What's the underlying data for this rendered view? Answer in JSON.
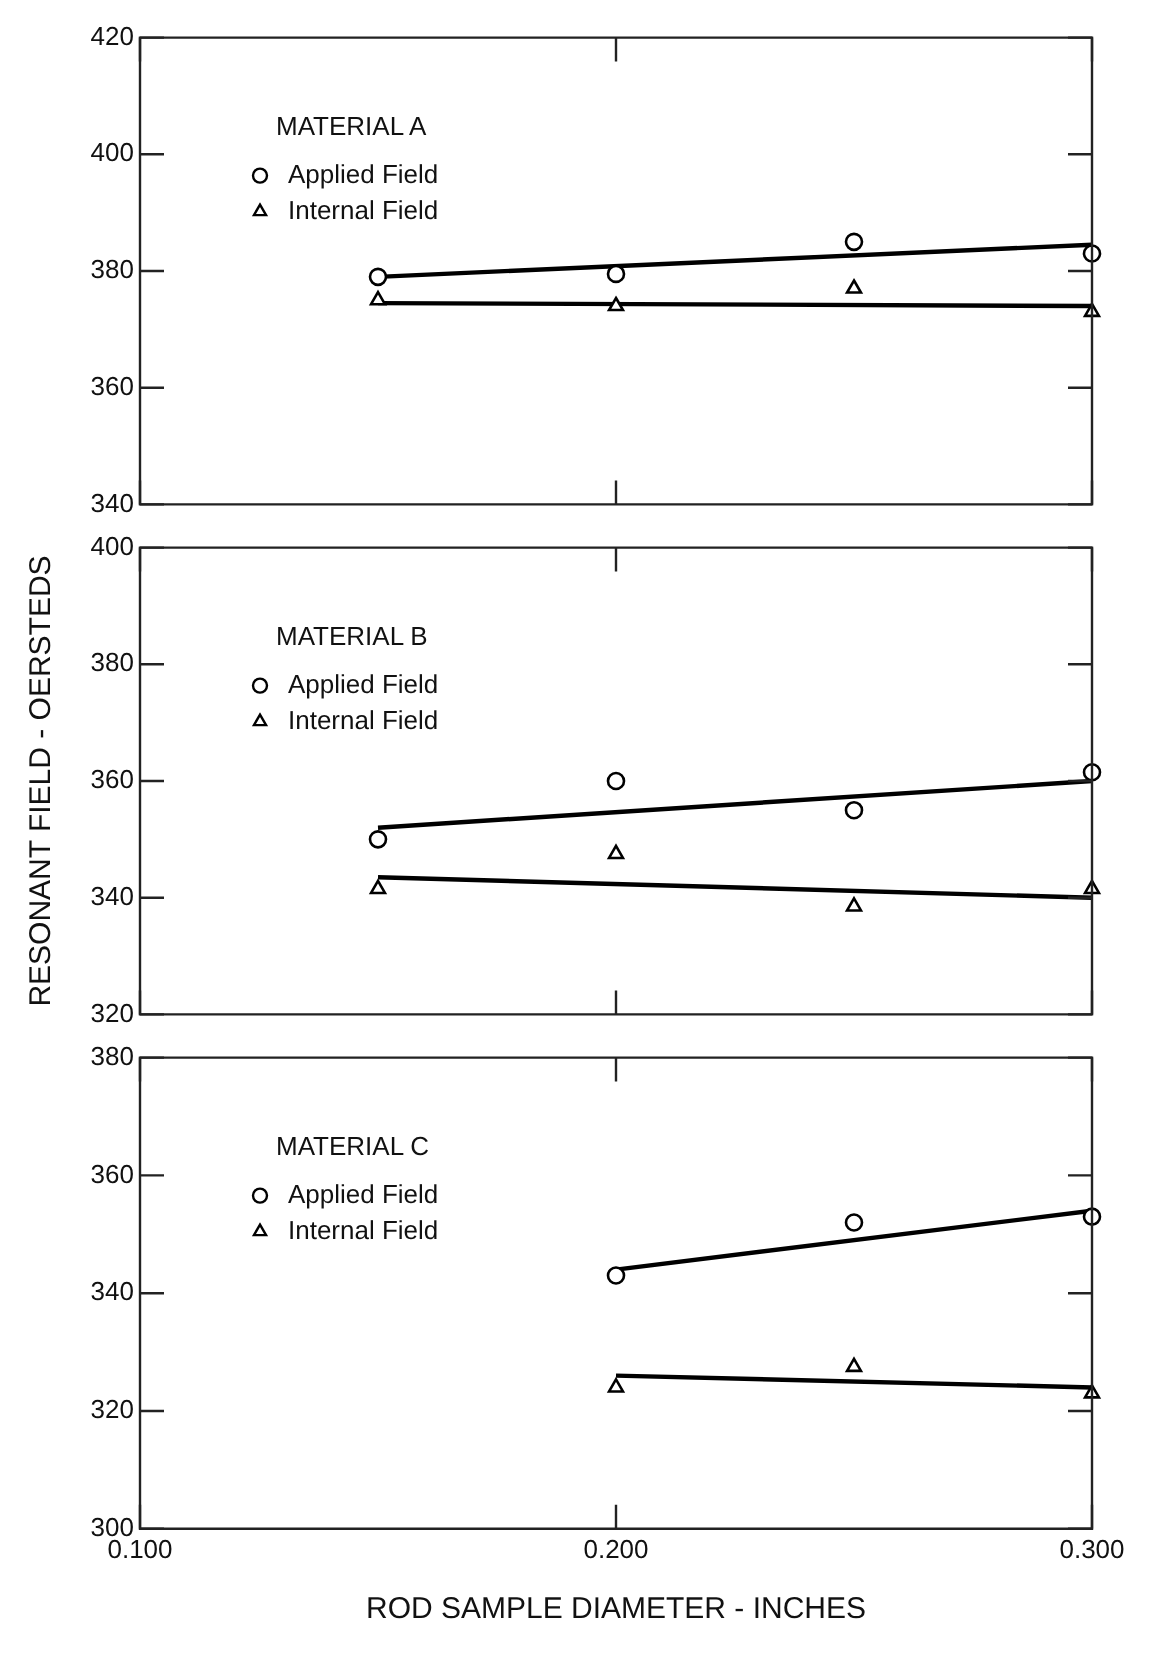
{
  "chart_data": [
    {
      "type": "scatter",
      "annotations": [
        "MATERIAL A"
      ],
      "xlim": [
        0.1,
        0.3
      ],
      "xticks": [
        0.1,
        0.2,
        0.3
      ],
      "ylim": [
        340,
        420
      ],
      "yticks": [
        340,
        360,
        380,
        400,
        420
      ],
      "tick_labels": "y",
      "legend": "top left",
      "x": [
        0.15,
        0.2,
        0.25,
        0.3
      ],
      "series": [
        {
          "name": "Applied Field",
          "color": "#000000",
          "marker": "circle",
          "values": [
            379,
            379.5,
            385,
            383
          ]
        },
        {
          "name": "Internal Field",
          "color": "#000000",
          "marker": "triangle",
          "values": [
            375,
            374,
            377,
            373
          ]
        },
        {
          "type": "line",
          "color": "#000000",
          "marker": "none",
          "x": [
            0.15,
            0.3
          ],
          "values": [
            379,
            384.5
          ]
        },
        {
          "type": "line",
          "color": "#000000",
          "marker": "none",
          "x": [
            0.15,
            0.3
          ],
          "values": [
            374.5,
            374
          ]
        }
      ]
    },
    {
      "type": "scatter",
      "annotations": [
        "MATERIAL B"
      ],
      "ylabel": "RESONANT FIELD - OERSTEDS",
      "xlim": [
        0.1,
        0.3
      ],
      "xticks": [
        0.1,
        0.2,
        0.3
      ],
      "ylim": [
        320,
        400
      ],
      "yticks": [
        320,
        340,
        360,
        380,
        400
      ],
      "tick_labels": "y",
      "legend": "top left",
      "x": [
        0.15,
        0.2,
        0.25,
        0.3
      ],
      "series": [
        {
          "name": "Applied Field",
          "color": "#000000",
          "marker": "circle",
          "values": [
            350,
            360,
            355,
            361.5
          ]
        },
        {
          "name": "Internal Field",
          "color": "#000000",
          "marker": "triangle",
          "values": [
            341.5,
            347.5,
            338.5,
            341.5
          ]
        },
        {
          "type": "line",
          "color": "#000000",
          "marker": "none",
          "x": [
            0.15,
            0.3
          ],
          "values": [
            352,
            360
          ]
        },
        {
          "type": "line",
          "color": "#000000",
          "marker": "none",
          "x": [
            0.15,
            0.3
          ],
          "values": [
            343.5,
            340
          ]
        }
      ]
    },
    {
      "type": "scatter",
      "annotations": [
        "MATERIAL C"
      ],
      "xlabel": "ROD SAMPLE DIAMETER - INCHES",
      "xlim": [
        0.1,
        0.3
      ],
      "xticks": [
        {
          "value": 0.1,
          "label": "0.100"
        },
        {
          "value": 0.2,
          "label": "0.200"
        },
        {
          "value": 0.3,
          "label": "0.300"
        }
      ],
      "ylim": [
        300,
        380
      ],
      "yticks": [
        300,
        320,
        340,
        360,
        380
      ],
      "legend": "top left",
      "x": [
        0.2,
        0.25,
        0.3
      ],
      "series": [
        {
          "name": "Applied Field",
          "color": "#000000",
          "marker": "circle",
          "values": [
            343,
            352,
            353
          ]
        },
        {
          "name": "Internal Field",
          "color": "#000000",
          "marker": "triangle",
          "values": [
            324,
            327.5,
            323
          ]
        },
        {
          "type": "line",
          "color": "#000000",
          "marker": "none",
          "x": [
            0.2,
            0.3
          ],
          "values": [
            344,
            354
          ]
        },
        {
          "type": "line",
          "color": "#000000",
          "marker": "none",
          "x": [
            0.2,
            0.3
          ],
          "values": [
            326,
            324
          ]
        }
      ]
    }
  ]
}
